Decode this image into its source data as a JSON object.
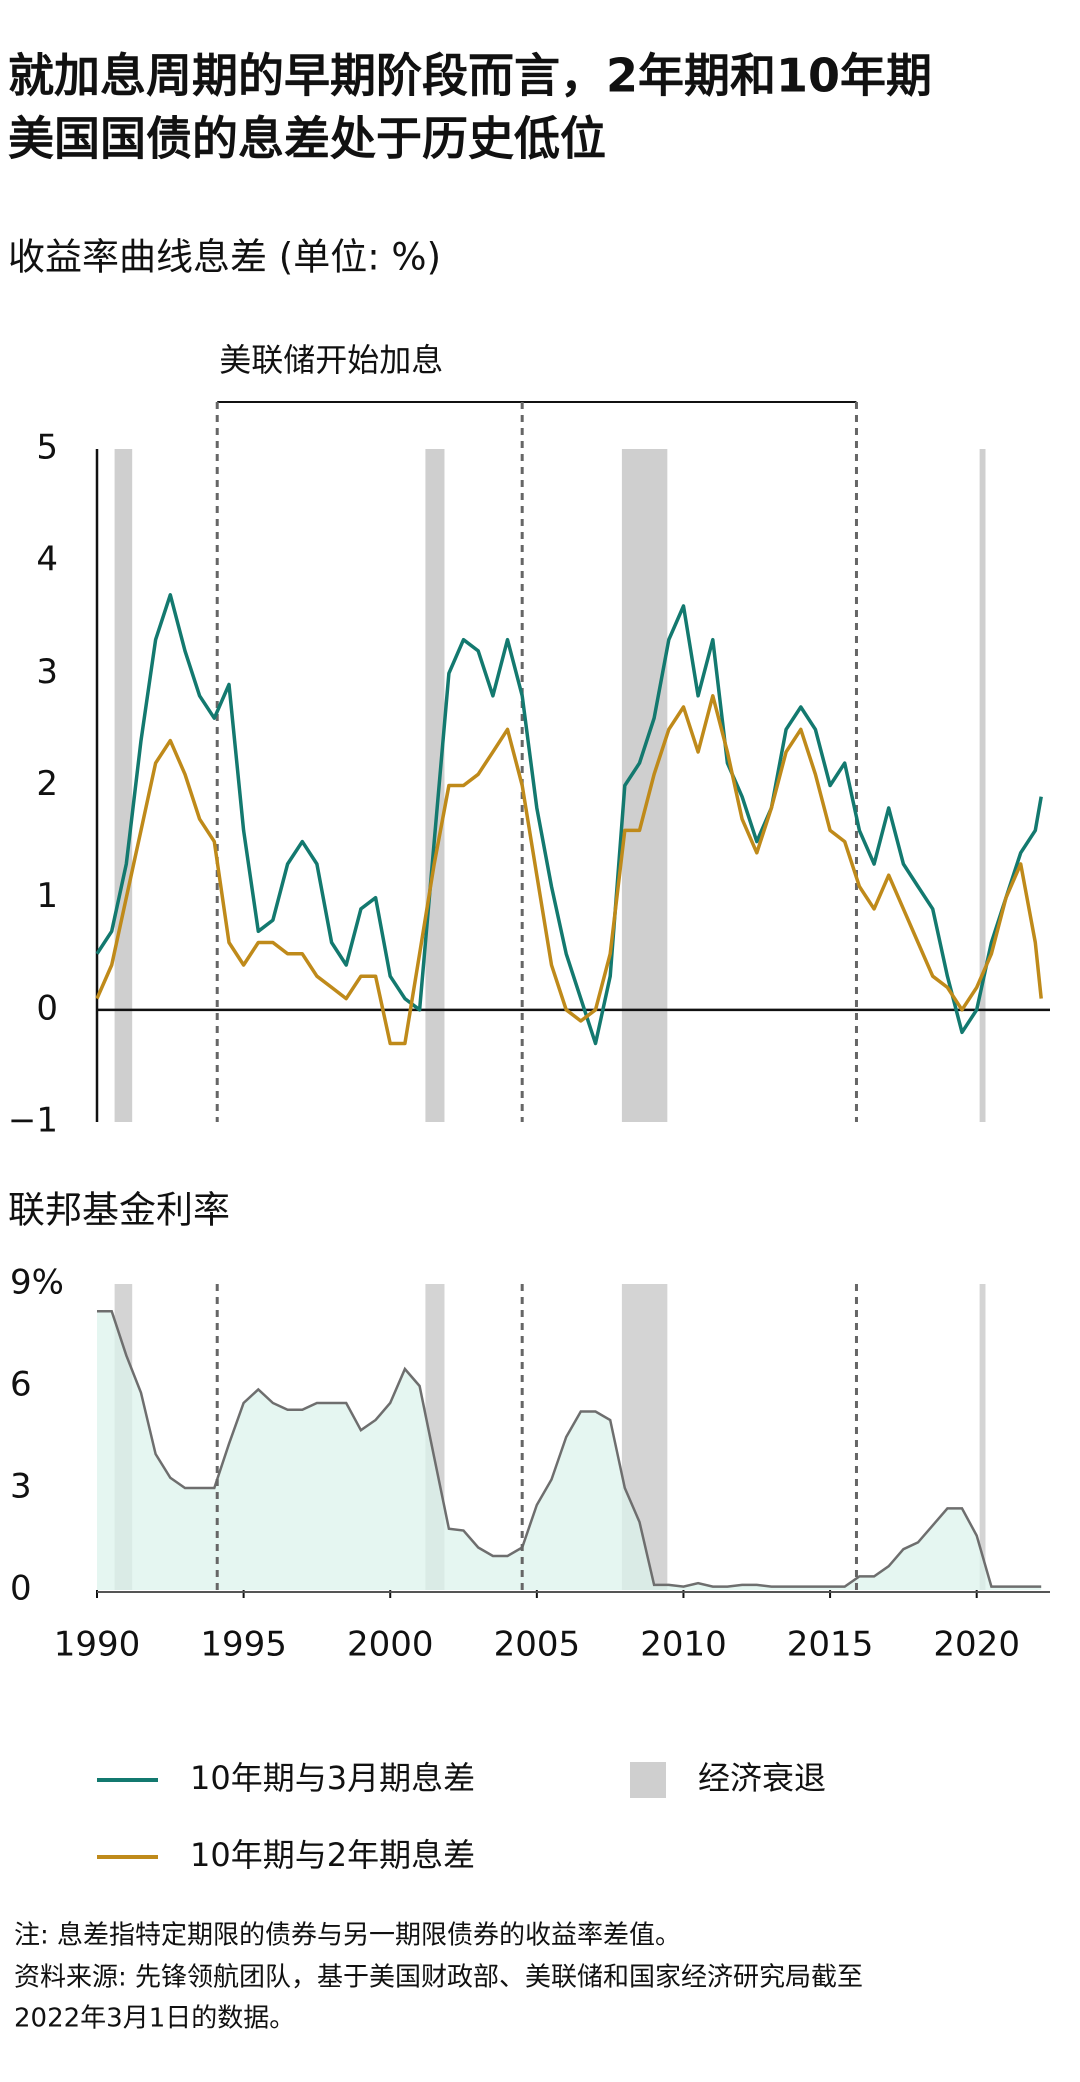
{
  "title": [
    "就加息周期的早期阶段而言，2年期和10年期",
    "美国国债的息差处于历史低位"
  ],
  "notes": [
    "注: 息差指特定期限的债券与另一期限债券的收益率差值。",
    "资料来源: 先锋领航团队，基于美国财政部、美联储和国家经济研究局截至",
    "2022年3月1日的数据。"
  ],
  "chart_data": [
    {
      "type": "line",
      "title": "收益率曲线息差 (单位: %)",
      "annotation": {
        "text": "美联储开始加息",
        "x": [
          1994.1,
          2004.5,
          2015.9
        ]
      },
      "shaded_periods": {
        "name": "经济衰退",
        "color": "#cfcfcf",
        "ranges": [
          [
            1990.6,
            1991.2
          ],
          [
            2001.2,
            2001.85
          ],
          [
            2007.9,
            2009.45
          ],
          [
            2020.1,
            2020.3
          ]
        ]
      },
      "x": [
        1990,
        1990.5,
        1991,
        1991.5,
        1992,
        1992.5,
        1993,
        1993.5,
        1994,
        1994.5,
        1995,
        1995.5,
        1996,
        1996.5,
        1997,
        1997.5,
        1998,
        1998.5,
        1999,
        1999.5,
        2000,
        2000.5,
        2001,
        2001.5,
        2002,
        2002.5,
        2003,
        2003.5,
        2004,
        2004.5,
        2005,
        2005.5,
        2006,
        2006.5,
        2007,
        2007.5,
        2008,
        2008.5,
        2009,
        2009.5,
        2010,
        2010.5,
        2011,
        2011.5,
        2012,
        2012.5,
        2013,
        2013.5,
        2014,
        2014.5,
        2015,
        2015.5,
        2016,
        2016.5,
        2017,
        2017.5,
        2018,
        2018.5,
        2019,
        2019.5,
        2020,
        2020.5,
        2021,
        2021.5,
        2022,
        2022.2
      ],
      "series": [
        {
          "name": "10年期与3月期息差",
          "color": "#13796f",
          "values": [
            0.5,
            0.7,
            1.3,
            2.4,
            3.3,
            3.7,
            3.2,
            2.8,
            2.6,
            2.9,
            1.6,
            0.7,
            0.8,
            1.3,
            1.5,
            1.3,
            0.6,
            0.4,
            0.9,
            1.0,
            0.3,
            0.1,
            0.0,
            1.5,
            3.0,
            3.3,
            3.2,
            2.8,
            3.3,
            2.8,
            1.8,
            1.1,
            0.5,
            0.1,
            -0.3,
            0.3,
            2.0,
            2.2,
            2.6,
            3.3,
            3.6,
            2.8,
            3.3,
            2.2,
            1.9,
            1.5,
            1.8,
            2.5,
            2.7,
            2.5,
            2.0,
            2.2,
            1.6,
            1.3,
            1.8,
            1.3,
            1.1,
            0.9,
            0.3,
            -0.2,
            0.0,
            0.6,
            1.0,
            1.4,
            1.6,
            1.9
          ]
        },
        {
          "name": "10年期与2年期息差",
          "color": "#bf8a1a",
          "values": [
            0.1,
            0.4,
            1.0,
            1.6,
            2.2,
            2.4,
            2.1,
            1.7,
            1.5,
            0.6,
            0.4,
            0.6,
            0.6,
            0.5,
            0.5,
            0.3,
            0.2,
            0.1,
            0.3,
            0.3,
            -0.3,
            -0.3,
            0.5,
            1.3,
            2.0,
            2.0,
            2.1,
            2.3,
            2.5,
            2.0,
            1.2,
            0.4,
            0.0,
            -0.1,
            0.0,
            0.5,
            1.6,
            1.6,
            2.1,
            2.5,
            2.7,
            2.3,
            2.8,
            2.3,
            1.7,
            1.4,
            1.8,
            2.3,
            2.5,
            2.1,
            1.6,
            1.5,
            1.1,
            0.9,
            1.2,
            0.9,
            0.6,
            0.3,
            0.2,
            0.0,
            0.2,
            0.5,
            1.0,
            1.3,
            0.6,
            0.1
          ]
        }
      ],
      "xlim": [
        1990,
        2022.5
      ],
      "ylim": [
        -1,
        5
      ],
      "yticks": [
        {
          "value": -1,
          "label": "−1"
        },
        0,
        1,
        2,
        3,
        4,
        5
      ]
    },
    {
      "type": "area",
      "title": "联邦基金利率",
      "x": [
        1990,
        1990.5,
        1991,
        1991.5,
        1992,
        1992.5,
        1993,
        1993.5,
        1994,
        1994.5,
        1995,
        1995.5,
        1996,
        1996.5,
        1997,
        1997.5,
        1998,
        1998.5,
        1999,
        1999.5,
        2000,
        2000.5,
        2001,
        2001.5,
        2002,
        2002.5,
        2003,
        2003.5,
        2004,
        2004.5,
        2005,
        2005.5,
        2006,
        2006.5,
        2007,
        2007.5,
        2008,
        2008.5,
        2009,
        2009.5,
        2010,
        2010.5,
        2011,
        2011.5,
        2012,
        2012.5,
        2013,
        2013.5,
        2014,
        2014.5,
        2015,
        2015.5,
        2016,
        2016.5,
        2017,
        2017.5,
        2018,
        2018.5,
        2019,
        2019.5,
        2020,
        2020.5,
        2021,
        2021.5,
        2022,
        2022.2
      ],
      "series": [
        {
          "color": "#6e6e6e",
          "fill": "#dcf3ec",
          "values": [
            8.2,
            8.2,
            6.9,
            5.8,
            4.0,
            3.3,
            3.0,
            3.0,
            3.0,
            4.3,
            5.5,
            5.9,
            5.5,
            5.3,
            5.3,
            5.5,
            5.5,
            5.5,
            4.7,
            5.0,
            5.5,
            6.5,
            6.0,
            3.9,
            1.8,
            1.75,
            1.25,
            1.0,
            1.0,
            1.25,
            2.5,
            3.25,
            4.5,
            5.25,
            5.25,
            5.0,
            3.0,
            2.0,
            0.15,
            0.15,
            0.1,
            0.2,
            0.1,
            0.1,
            0.15,
            0.15,
            0.1,
            0.1,
            0.1,
            0.1,
            0.1,
            0.1,
            0.4,
            0.4,
            0.7,
            1.2,
            1.4,
            1.9,
            2.4,
            2.4,
            1.6,
            0.1,
            0.1,
            0.1,
            0.1,
            0.1
          ]
        }
      ],
      "xlim": [
        1990,
        2022.5
      ],
      "xticks": [
        1990,
        1995,
        2000,
        2005,
        2010,
        2015,
        2020
      ],
      "ylim": [
        0,
        9
      ],
      "yticks": [
        0,
        3,
        6,
        {
          "value": 9,
          "label": "9%"
        }
      ]
    }
  ]
}
